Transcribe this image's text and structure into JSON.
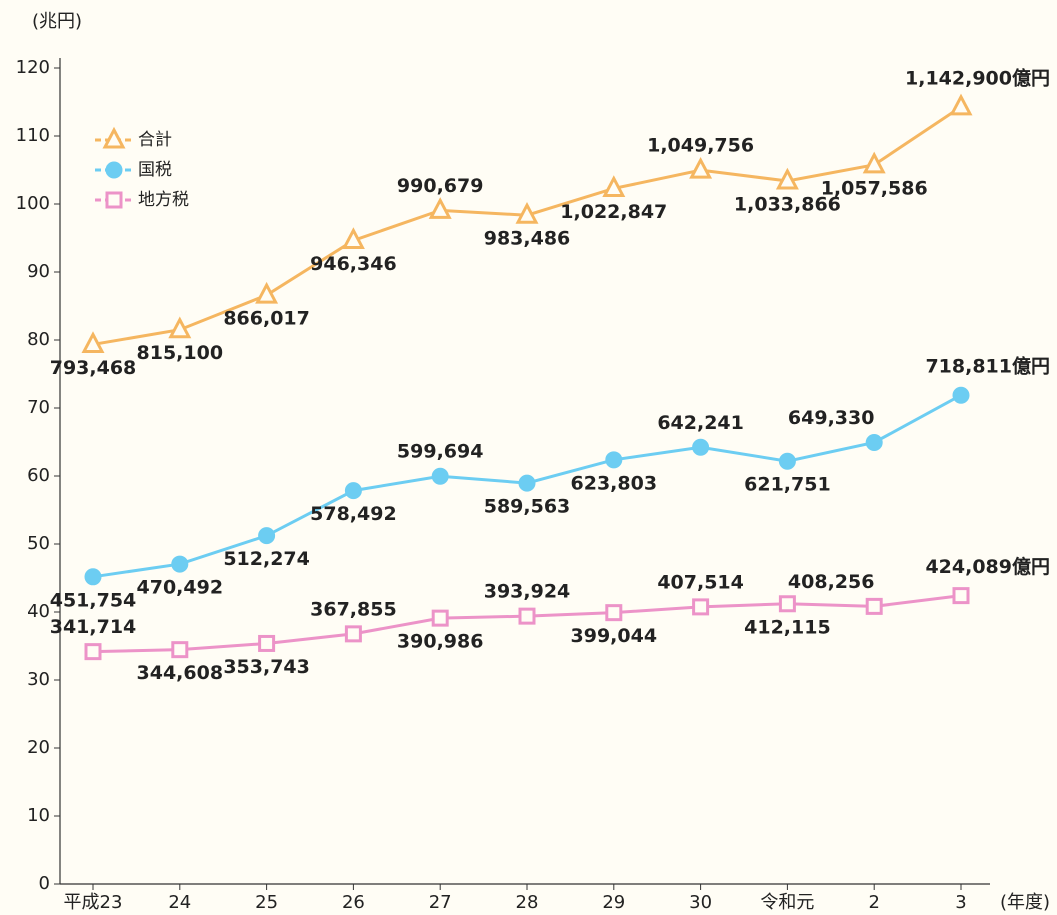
{
  "chart_data": {
    "type": "line",
    "y_axis_label": "(兆円)",
    "x_axis_label": "(年度)",
    "categories": [
      "平成23",
      "24",
      "25",
      "26",
      "27",
      "28",
      "29",
      "30",
      "令和元",
      "2",
      "3"
    ],
    "ylim": [
      0,
      120
    ],
    "yticks": [
      0,
      10,
      20,
      30,
      40,
      50,
      60,
      70,
      80,
      90,
      100,
      110,
      120
    ],
    "grid": false,
    "legend": "upper left",
    "series": [
      {
        "name": "合計",
        "color": "#f5b660",
        "marker": "triangle",
        "values": [
          79.3468,
          81.51,
          86.6017,
          94.6346,
          99.0679,
          98.3486,
          102.2847,
          104.9756,
          103.3866,
          105.7586,
          114.29
        ],
        "value_labels": [
          "793,468",
          "815,100",
          "866,017",
          "946,346",
          "990,679",
          "983,486",
          "1,022,847",
          "1,049,756",
          "1,033,866",
          "1,057,586",
          "1,142,900億円"
        ]
      },
      {
        "name": "国税",
        "color": "#6ccdf2",
        "marker": "circle",
        "values": [
          45.1754,
          47.0492,
          51.2274,
          57.8492,
          59.9694,
          58.9563,
          62.3803,
          64.2241,
          62.1751,
          64.933,
          71.8811
        ],
        "value_labels": [
          "451,754",
          "470,492",
          "512,274",
          "578,492",
          "599,694",
          "589,563",
          "623,803",
          "642,241",
          "621,751",
          "649,330",
          "718,811億円"
        ]
      },
      {
        "name": "地方税",
        "color": "#ec93c8",
        "marker": "square",
        "values": [
          34.1714,
          34.4608,
          35.3743,
          36.7855,
          39.0986,
          39.3924,
          39.9044,
          40.7514,
          41.2115,
          40.8256,
          42.4089
        ],
        "value_labels": [
          "341,714",
          "344,608",
          "353,743",
          "367,855",
          "390,986",
          "393,924",
          "399,044",
          "407,514",
          "412,115",
          "408,256",
          "424,089億円"
        ]
      }
    ]
  }
}
